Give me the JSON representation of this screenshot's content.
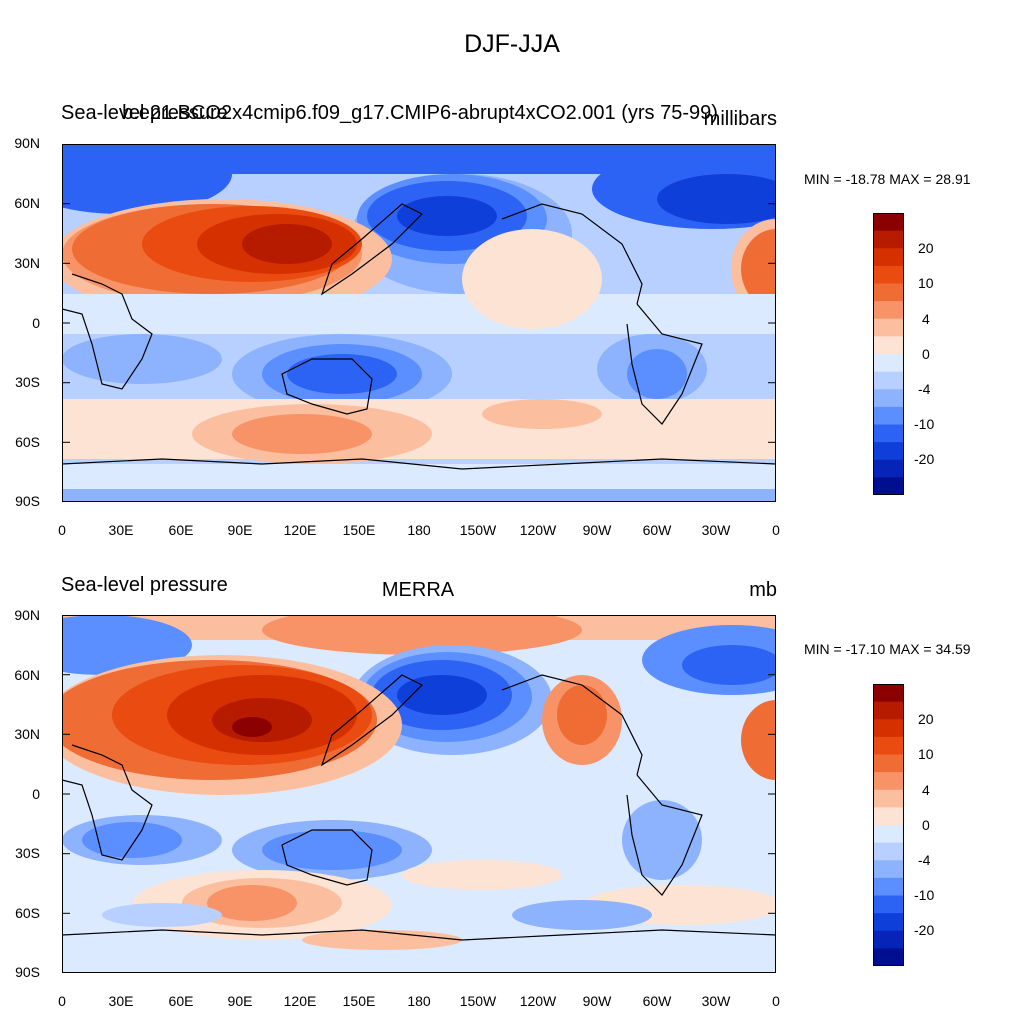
{
  "title": "DJF-JJA",
  "panels": [
    {
      "left_title": "Sea-level pressure",
      "center_title": "b.e21.BCO2x4cmip6.f09_g17.CMIP6-abrupt4xCO2.001 (yrs 75-99)",
      "units": "millibars",
      "minmax": "MIN = -18.78 MAX =  28.91",
      "lat_labels": [
        "90N",
        "60N",
        "30N",
        "0",
        "30S",
        "60S",
        "90S"
      ],
      "lon_labels": [
        "0",
        "30E",
        "60E",
        "90E",
        "120E",
        "150E",
        "180",
        "150W",
        "120W",
        "90W",
        "60W",
        "30W",
        "0"
      ],
      "colorbar_labels": [
        "20",
        "10",
        "4",
        "0",
        "-4",
        "-10",
        "-20"
      ]
    },
    {
      "left_title": "Sea-level pressure",
      "center_title": "MERRA",
      "units": "mb",
      "minmax": "MIN = -17.10 MAX =  34.59",
      "lat_labels": [
        "90N",
        "60N",
        "30N",
        "0",
        "30S",
        "60S",
        "90S"
      ],
      "lon_labels": [
        "0",
        "30E",
        "60E",
        "90E",
        "120E",
        "150E",
        "180",
        "150W",
        "120W",
        "90W",
        "60W",
        "30W",
        "0"
      ],
      "colorbar_labels": [
        "20",
        "10",
        "4",
        "0",
        "-4",
        "-10",
        "-20"
      ]
    }
  ],
  "colorbar_colors": [
    "#8b0000",
    "#b61b00",
    "#d43000",
    "#ea4b10",
    "#f06c35",
    "#f79367",
    "#fbbfa0",
    "#fde3d3",
    "#dceaff",
    "#b7d0ff",
    "#8db3ff",
    "#5b8fff",
    "#2d63f5",
    "#0f3fd9",
    "#0624b8",
    "#000f8f"
  ]
}
